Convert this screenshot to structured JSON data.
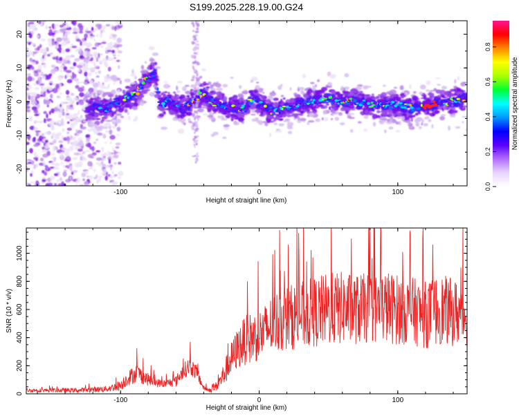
{
  "title": "S199.2025.228.19.00.G24",
  "colors": {
    "snr_line": "#ee2222",
    "axis": "#000000",
    "spec_palette": [
      "#ece2f7",
      "#d7bdf1",
      "#b98be9",
      "#9a4be6",
      "#7a10e8",
      "#3a18ff",
      "#0a6cff",
      "#00d7ff",
      "#20ff40",
      "#c8ff00",
      "#ffb000",
      "#ff2020"
    ],
    "colorbar": [
      "#ffffff",
      "#e8d5ff",
      "#b26bff",
      "#5a00ff",
      "#0000ff",
      "#0099ff",
      "#00ffff",
      "#00ff33",
      "#aaff00",
      "#ffff00",
      "#ff8800",
      "#ff0000",
      "#ff1493"
    ]
  },
  "chart_data": [
    {
      "type": "heatmap",
      "title": "S199.2025.228.19.00.G24",
      "xlabel": "Height of straight line (km)",
      "ylabel": "Frequency (Hz)",
      "xlim": [
        -168,
        150
      ],
      "ylim": [
        -25,
        24
      ],
      "xticks": [
        -100,
        0,
        100
      ],
      "xtick_labels": [
        "-100",
        "0",
        "100"
      ],
      "yticks": [
        -20,
        -10,
        0,
        10,
        20
      ],
      "ytick_labels": [
        "-20",
        "-10",
        "0",
        "10",
        "20"
      ],
      "ridge": {
        "description": "dominant frequency track",
        "x": [
          -120,
          -110,
          -100,
          -90,
          -82,
          -75,
          -72,
          -65,
          -55,
          -45,
          -40,
          -35,
          -28,
          -20,
          -10,
          -5,
          0,
          5,
          10,
          20,
          30,
          40,
          50,
          60,
          70,
          80,
          90,
          100,
          110,
          120,
          125,
          130,
          140,
          148
        ],
        "y": [
          -2,
          -2,
          0,
          2,
          6,
          9,
          -1,
          0,
          -2,
          1,
          3,
          0,
          -1,
          -2,
          -2,
          1,
          0,
          -2,
          -3,
          -2,
          -1,
          0,
          1,
          0,
          0,
          -1,
          -1,
          -1,
          -2,
          -1,
          -1,
          0,
          0,
          1
        ]
      },
      "colorbar": {
        "label": "Normalized spectral amplitude",
        "range": [
          0,
          0.95
        ],
        "ticks": [
          0.0,
          0.2,
          0.4,
          0.6,
          0.8
        ],
        "tick_labels": [
          "0.0",
          "0.2",
          "0.4",
          "0.6",
          "0.8"
        ]
      }
    },
    {
      "type": "line",
      "xlabel": "Height of straight line (km)",
      "ylabel": "SNR (10 * v/v)",
      "xlim": [
        -168,
        150
      ],
      "ylim": [
        0,
        1180
      ],
      "xticks": [
        -100,
        0,
        100
      ],
      "xtick_labels": [
        "-100",
        "0",
        "100"
      ],
      "yticks": [
        0,
        200,
        400,
        600,
        800,
        1000
      ],
      "ytick_labels": [
        "0",
        "200",
        "400",
        "600",
        "800",
        "1000"
      ],
      "envelope": {
        "description": "approximate SNR envelope (mean and spread) vs height",
        "x": [
          -168,
          -130,
          -110,
          -100,
          -95,
          -88,
          -82,
          -75,
          -68,
          -60,
          -55,
          -50,
          -45,
          -40,
          -35,
          -30,
          -25,
          -20,
          -15,
          -10,
          -5,
          0,
          5,
          10,
          15,
          20,
          30,
          40,
          50,
          60,
          70,
          80,
          90,
          100,
          110,
          120,
          130,
          140,
          150
        ],
        "mean": [
          25,
          25,
          35,
          60,
          110,
          150,
          110,
          80,
          70,
          90,
          160,
          200,
          150,
          40,
          25,
          60,
          150,
          250,
          330,
          380,
          400,
          420,
          450,
          500,
          520,
          540,
          560,
          580,
          600,
          610,
          600,
          610,
          620,
          600,
          590,
          560,
          600,
          580,
          560
        ],
        "spread": [
          12,
          15,
          20,
          35,
          50,
          60,
          45,
          30,
          25,
          35,
          50,
          60,
          50,
          15,
          15,
          35,
          80,
          110,
          140,
          160,
          170,
          170,
          180,
          200,
          210,
          210,
          220,
          230,
          240,
          240,
          230,
          230,
          240,
          230,
          220,
          220,
          230,
          220,
          210
        ]
      }
    }
  ]
}
